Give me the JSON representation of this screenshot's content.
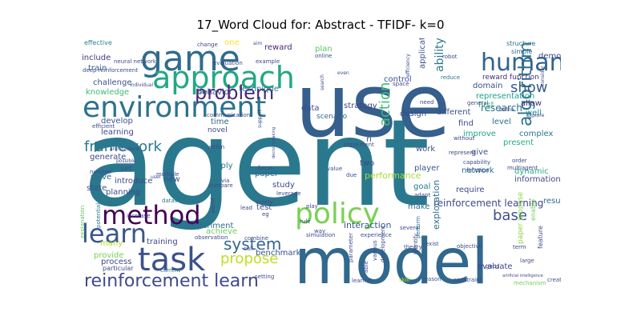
{
  "chart_data": {
    "type": "word-cloud",
    "title": "17_Word Cloud for: Abstract - TFIDF- k=0",
    "background": "#ffffff",
    "words": [
      {
        "text": "agent",
        "weight": 100,
        "color": "#2a788e"
      },
      {
        "text": "model",
        "weight": 62,
        "color": "#31688e"
      },
      {
        "text": "use",
        "weight": 78,
        "color": "#355f8d"
      },
      {
        "text": "environment",
        "weight": 36,
        "color": "#2c728e"
      },
      {
        "text": "game",
        "weight": 34,
        "color": "#2f6c8e"
      },
      {
        "text": "approach",
        "weight": 30,
        "color": "#22a884"
      },
      {
        "text": "task",
        "weight": 34,
        "color": "#3b528b"
      },
      {
        "text": "human",
        "weight": 26,
        "color": "#33638d"
      },
      {
        "text": "policy",
        "weight": 34,
        "color": "#7ad151"
      },
      {
        "text": "learn",
        "weight": 32,
        "color": "#39568c"
      },
      {
        "text": "method",
        "weight": 30,
        "color": "#440154"
      },
      {
        "text": "problem",
        "weight": 22,
        "color": "#482878"
      },
      {
        "text": "reinforcement learn",
        "weight": 20,
        "color": "#3e4a89"
      },
      {
        "text": "algorithm",
        "weight": 20,
        "color": "#2c728e"
      },
      {
        "text": "system",
        "weight": 20,
        "color": "#31688e"
      },
      {
        "text": "framework",
        "weight": 18,
        "color": "#2a788e"
      },
      {
        "text": "propose",
        "weight": 18,
        "color": "#bddf26"
      },
      {
        "text": "action",
        "weight": 18,
        "color": "#3dbc74"
      },
      {
        "text": "show",
        "weight": 17,
        "color": "#355f8d"
      },
      {
        "text": "base",
        "weight": 16,
        "color": "#3b528b"
      },
      {
        "text": "ability",
        "weight": 14,
        "color": "#2a788e"
      },
      {
        "text": "reinforcement learning",
        "weight": 11,
        "color": "#3e4a89"
      },
      {
        "text": "research",
        "weight": 11,
        "color": "#2c728e"
      },
      {
        "text": "performance",
        "weight": 10,
        "color": "#a5db36"
      },
      {
        "text": "interaction",
        "weight": 10,
        "color": "#38598c"
      },
      {
        "text": "exploration",
        "weight": 10,
        "color": "#2d708e"
      },
      {
        "text": "paper propose",
        "weight": 10,
        "color": "#8fd744"
      },
      {
        "text": "dynamic",
        "weight": 9,
        "color": "#27ad81"
      },
      {
        "text": "representation",
        "weight": 9,
        "color": "#1fa187"
      },
      {
        "text": "reward function",
        "weight": 8,
        "color": "#472c7a"
      },
      {
        "text": "evaluate",
        "weight": 9,
        "color": "#404688"
      },
      {
        "text": "benchmark",
        "weight": 8,
        "color": "#3b528b"
      },
      {
        "text": "experiment",
        "weight": 8,
        "color": "#2e6e8e"
      },
      {
        "text": "challenge",
        "weight": 8,
        "color": "#3b528b"
      },
      {
        "text": "knowledge",
        "weight": 9,
        "color": "#3dbc74"
      },
      {
        "text": "include",
        "weight": 8,
        "color": "#453781"
      },
      {
        "text": "train",
        "weight": 9,
        "color": "#31688e"
      },
      {
        "text": "effective",
        "weight": 6,
        "color": "#26828e"
      },
      {
        "text": "reward",
        "weight": 8,
        "color": "#482475"
      },
      {
        "text": "plan",
        "weight": 8,
        "color": "#5ec962"
      },
      {
        "text": "demonstrate",
        "weight": 8,
        "color": "#3e4a89"
      },
      {
        "text": "structure",
        "weight": 6,
        "color": "#2d708e"
      },
      {
        "text": "simple",
        "weight": 6,
        "color": "#31688e"
      },
      {
        "text": "domain",
        "weight": 8,
        "color": "#3b528b"
      },
      {
        "text": "allow",
        "weight": 8,
        "color": "#46327e"
      },
      {
        "text": "well",
        "weight": 8,
        "color": "#21918c"
      },
      {
        "text": "first",
        "weight": 8,
        "color": "#35b779"
      },
      {
        "text": "find",
        "weight": 8,
        "color": "#3e4a89"
      },
      {
        "text": "improve",
        "weight": 8,
        "color": "#20a486"
      },
      {
        "text": "complex",
        "weight": 8,
        "color": "#2c728e"
      },
      {
        "text": "present",
        "weight": 8,
        "color": "#25ac82"
      },
      {
        "text": "level",
        "weight": 8,
        "color": "#2d708e"
      },
      {
        "text": "give",
        "weight": 8,
        "color": "#3b528b"
      },
      {
        "text": "information",
        "weight": 8,
        "color": "#3e4a89"
      },
      {
        "text": "result",
        "weight": 8,
        "color": "#31688e"
      },
      {
        "text": "network",
        "weight": 8,
        "color": "#2c728e"
      },
      {
        "text": "require",
        "weight": 8,
        "color": "#3e4a89"
      },
      {
        "text": "player",
        "weight": 8,
        "color": "#39568c"
      },
      {
        "text": "goal",
        "weight": 8,
        "color": "#2a788e"
      },
      {
        "text": "work",
        "weight": 8,
        "color": "#3b528b"
      },
      {
        "text": "design",
        "weight": 8,
        "color": "#3e4a89"
      },
      {
        "text": "different",
        "weight": 8,
        "color": "#3b528b"
      },
      {
        "text": "strategy",
        "weight": 8,
        "color": "#404688"
      },
      {
        "text": "scenario",
        "weight": 7,
        "color": "#31688e"
      },
      {
        "text": "data",
        "weight": 8,
        "color": "#3e4a89"
      },
      {
        "text": "behavior",
        "weight": 8,
        "color": "#3b528b"
      },
      {
        "text": "technique",
        "weight": 8,
        "color": "#2a788e"
      },
      {
        "text": "develop",
        "weight": 8,
        "color": "#3b528b"
      },
      {
        "text": "learning",
        "weight": 8,
        "color": "#3e4a89"
      },
      {
        "text": "time",
        "weight": 8,
        "color": "#31688e"
      },
      {
        "text": "novel",
        "weight": 7,
        "color": "#3e4a89"
      },
      {
        "text": "generate",
        "weight": 8,
        "color": "#3e4a89"
      },
      {
        "text": "solve",
        "weight": 8,
        "color": "#31688e"
      },
      {
        "text": "state",
        "weight": 8,
        "color": "#3b528b"
      },
      {
        "text": "set",
        "weight": 8,
        "color": "#3b528b"
      },
      {
        "text": "introduce",
        "weight": 8,
        "color": "#3e4a89"
      },
      {
        "text": "planning",
        "weight": 8,
        "color": "#3e4a89"
      },
      {
        "text": "apply",
        "weight": 8,
        "color": "#2a788e"
      },
      {
        "text": "new",
        "weight": 8,
        "color": "#3b528b"
      },
      {
        "text": "paper",
        "weight": 8,
        "color": "#31688e"
      },
      {
        "text": "two",
        "weight": 8,
        "color": "#3e4a89"
      },
      {
        "text": "rl",
        "weight": 8,
        "color": "#39568c"
      },
      {
        "text": "study",
        "weight": 8,
        "color": "#3e4a89"
      },
      {
        "text": "test",
        "weight": 8,
        "color": "#3b528b"
      },
      {
        "text": "make",
        "weight": 8,
        "color": "#31688e"
      },
      {
        "text": "many",
        "weight": 8,
        "color": "#b5de2b"
      },
      {
        "text": "training",
        "weight": 8,
        "color": "#3e4a89"
      },
      {
        "text": "achieve",
        "weight": 8,
        "color": "#6ece58"
      },
      {
        "text": "provide",
        "weight": 8,
        "color": "#7ad151"
      },
      {
        "text": "process",
        "weight": 8,
        "color": "#3e4a89"
      },
      {
        "text": "one",
        "weight": 8,
        "color": "#fde725"
      },
      {
        "text": "control",
        "weight": 8,
        "color": "#3b528b"
      },
      {
        "text": "application",
        "weight": 8,
        "color": "#3b528b"
      },
      {
        "text": "good",
        "weight": 6,
        "color": "#3e4a89"
      },
      {
        "text": "theory",
        "weight": 6,
        "color": "#3b528b"
      },
      {
        "text": "feature",
        "weight": 7,
        "color": "#3e4a89"
      },
      {
        "text": "create",
        "weight": 6,
        "color": "#3b528b"
      },
      {
        "text": "mechanism",
        "weight": 5,
        "color": "#6ece58"
      },
      {
        "text": "constraint",
        "weight": 6,
        "color": "#3e4a89"
      },
      {
        "text": "skill",
        "weight": 5,
        "color": "#b5de2b"
      },
      {
        "text": "reason",
        "weight": 5,
        "color": "#3b528b"
      },
      {
        "text": "learn rl",
        "weight": 5,
        "color": "#3e4a89"
      },
      {
        "text": "setting",
        "weight": 6,
        "color": "#3e4a89"
      },
      {
        "text": "current",
        "weight": 5,
        "color": "#2a788e"
      },
      {
        "text": "particular",
        "weight": 6,
        "color": "#3e4a89"
      },
      {
        "text": "explanation",
        "weight": 5,
        "color": "#5ec962"
      },
      {
        "text": "call",
        "weight": 5,
        "color": "#3b528b"
      },
      {
        "text": "observation",
        "weight": 5,
        "color": "#3e4a89"
      },
      {
        "text": "combine",
        "weight": 5,
        "color": "#3e4a89"
      },
      {
        "text": "simulation",
        "weight": 5,
        "color": "#3e4a89"
      },
      {
        "text": "experience",
        "weight": 5,
        "color": "#3e4a89"
      },
      {
        "text": "safety",
        "weight": 5,
        "color": "#3e4a89"
      },
      {
        "text": "lead",
        "weight": 5,
        "color": "#3e4a89"
      },
      {
        "text": "eg",
        "weight": 5,
        "color": "#3e4a89"
      },
      {
        "text": "rule",
        "weight": 5,
        "color": "#3e4a89"
      },
      {
        "text": "way",
        "weight": 5,
        "color": "#3e4a89"
      },
      {
        "text": "play",
        "weight": 5,
        "color": "#3e4a89"
      },
      {
        "text": "exist",
        "weight": 5,
        "color": "#3e4a89"
      },
      {
        "text": "objective",
        "weight": 5,
        "color": "#3e4a89"
      },
      {
        "text": "adapt",
        "weight": 5,
        "color": "#3e4a89"
      },
      {
        "text": "several",
        "weight": 5,
        "color": "#3e4a89"
      },
      {
        "text": "perform",
        "weight": 5,
        "color": "#2a788e"
      },
      {
        "text": "identify",
        "weight": 5,
        "color": "#3e4a89"
      },
      {
        "text": "development",
        "weight": 5,
        "color": "#3e4a89"
      },
      {
        "text": "various",
        "weight": 5,
        "color": "#3e4a89"
      },
      {
        "text": "able",
        "weight": 5,
        "color": "#3e4a89"
      },
      {
        "text": "parameter",
        "weight": 5,
        "color": "#3e4a89"
      },
      {
        "text": "implement",
        "weight": 5,
        "color": "#3e4a89"
      },
      {
        "text": "without",
        "weight": 5,
        "color": "#3e4a89"
      },
      {
        "text": "represent",
        "weight": 5,
        "color": "#3e4a89"
      },
      {
        "text": "capability",
        "weight": 5,
        "color": "#3e4a89"
      },
      {
        "text": "function",
        "weight": 5,
        "color": "#3e4a89"
      },
      {
        "text": "multiagent",
        "weight": 5,
        "color": "#3e4a89"
      },
      {
        "text": "order",
        "weight": 5,
        "color": "#3e4a89"
      },
      {
        "text": "term",
        "weight": 5,
        "color": "#3e4a89"
      },
      {
        "text": "large",
        "weight": 5,
        "color": "#3e4a89"
      },
      {
        "text": "enable",
        "weight": 5,
        "color": "#6ece58"
      },
      {
        "text": "robot",
        "weight": 5,
        "color": "#3e4a89"
      },
      {
        "text": "reduce",
        "weight": 5,
        "color": "#2a788e"
      },
      {
        "text": "efficiency",
        "weight": 4,
        "color": "#3e4a89"
      },
      {
        "text": "space",
        "weight": 5,
        "color": "#3e4a89"
      },
      {
        "text": "need",
        "weight": 5,
        "color": "#3e4a89"
      },
      {
        "text": "general",
        "weight": 5,
        "color": "#3e4a89"
      },
      {
        "text": "define",
        "weight": 4,
        "color": "#3e4a89"
      },
      {
        "text": "consider",
        "weight": 4,
        "color": "#3e4a89"
      },
      {
        "text": "online",
        "weight": 5,
        "color": "#3e4a89"
      },
      {
        "text": "search",
        "weight": 4,
        "color": "#3e4a89"
      },
      {
        "text": "even",
        "weight": 4,
        "color": "#3e4a89"
      },
      {
        "text": "change",
        "weight": 5,
        "color": "#3e4a89"
      },
      {
        "text": "aim",
        "weight": 4,
        "color": "#3e4a89"
      },
      {
        "text": "evaluation",
        "weight": 5,
        "color": "#3e4a89"
      },
      {
        "text": "example",
        "weight": 5,
        "color": "#3e4a89"
      },
      {
        "text": "neural network",
        "weight": 5,
        "color": "#3e4a89"
      },
      {
        "text": "deep reinforcement",
        "weight": 5,
        "color": "#3e4a89"
      },
      {
        "text": "individual",
        "weight": 4,
        "color": "#3e4a89"
      },
      {
        "text": "case",
        "weight": 4,
        "color": "#3e4a89"
      },
      {
        "text": "communication",
        "weight": 5,
        "color": "#3e4a89"
      },
      {
        "text": "efficient",
        "weight": 5,
        "color": "#3e4a89"
      },
      {
        "text": "architecture",
        "weight": 4,
        "color": "#3e4a89"
      },
      {
        "text": "user",
        "weight": 4,
        "color": "#3e4a89"
      },
      {
        "text": "number",
        "weight": 5,
        "color": "#3e4a89"
      },
      {
        "text": "within",
        "weight": 5,
        "color": "#3e4a89"
      },
      {
        "text": "multiple",
        "weight": 5,
        "color": "#3e4a89"
      },
      {
        "text": "via",
        "weight": 5,
        "color": "#3e4a89"
      },
      {
        "text": "compare",
        "weight": 5,
        "color": "#3e4a89"
      },
      {
        "text": "focus",
        "weight": 5,
        "color": "#3e4a89"
      },
      {
        "text": "leverage",
        "weight": 5,
        "color": "#3e4a89"
      },
      {
        "text": "value",
        "weight": 5,
        "color": "#3e4a89"
      },
      {
        "text": "due",
        "weight": 5,
        "color": "#3e4a89"
      },
      {
        "text": "dataset",
        "weight": 5,
        "color": "#2a788e"
      },
      {
        "text": "increase",
        "weight": 5,
        "color": "#3e4a89"
      },
      {
        "text": "potential",
        "weight": 5,
        "color": "#2a788e"
      },
      {
        "text": "world",
        "weight": 4,
        "color": "#3e4a89"
      },
      {
        "text": "support",
        "weight": 4,
        "color": "#3e4a89"
      },
      {
        "text": "explore",
        "weight": 4,
        "color": "#3e4a89"
      },
      {
        "text": "artificial intelligence",
        "weight": 3,
        "color": "#3e4a89"
      },
      {
        "text": "decisionmaking",
        "weight": 3,
        "color": "#3e4a89"
      },
      {
        "text": "possible",
        "weight": 4,
        "color": "#3e4a89"
      }
    ]
  }
}
